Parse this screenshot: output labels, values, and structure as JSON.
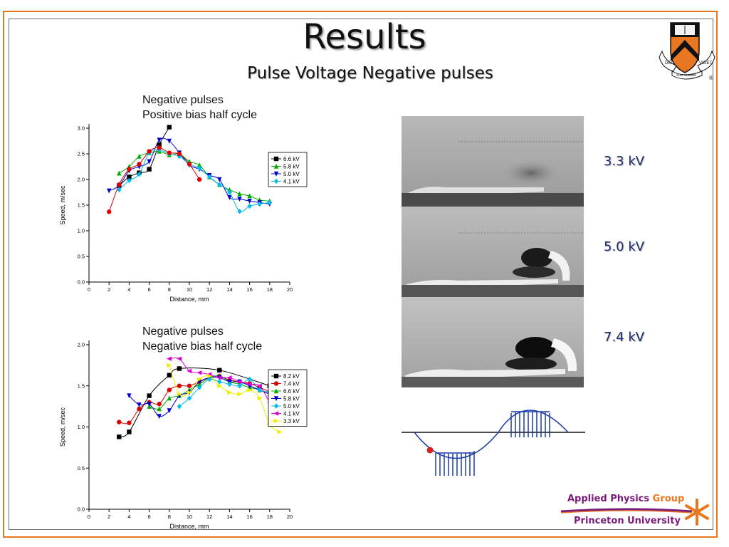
{
  "slide": {
    "title": "Results",
    "subtitle": "Pulse Voltage Negative pulses",
    "voltage_labels": [
      "3.3 kV",
      "5.0 kV",
      "7.4 kV"
    ],
    "footer": {
      "line1_part_a": "Applied Physics",
      "line1_part_b": "Group",
      "line2": "Princeton University"
    },
    "logo_motto_left": "DEI",
    "logo_motto_center": "SUB NUMINE",
    "logo_motto_right": "VIGET",
    "registered_mark": "®",
    "colors": {
      "frame": "#e87722",
      "text_blue": "#1d2d6b",
      "waveform": "#1a3aa8",
      "marker": "#d42020"
    }
  },
  "chart_data": [
    {
      "type": "line",
      "title": "Negative pulses",
      "subtitle": "Positive bias half cycle",
      "xlabel": "Distance, mm",
      "ylabel": "Speed, m/sec",
      "xlim": [
        0,
        20
      ],
      "ylim": [
        0.0,
        3.0
      ],
      "xticks": [
        "0",
        "2",
        "4",
        "6",
        "8",
        "10",
        "12",
        "14",
        "16",
        "18",
        "20"
      ],
      "yticks": [
        "0.0",
        "0.5",
        "1.0",
        "1.5",
        "2.0",
        "2.5",
        "3.0"
      ],
      "legend_position": "right",
      "grid": false,
      "series": [
        {
          "name": "6.6 kV",
          "color": "#000000",
          "marker": "square",
          "x": [
            3,
            4,
            5,
            6,
            7,
            8
          ],
          "y": [
            1.88,
            2.05,
            2.13,
            2.2,
            2.68,
            3.02
          ]
        },
        {
          "name": "5.8 kV",
          "color": "#00aa00",
          "marker": "triangle-up",
          "x": [
            3,
            4,
            5,
            6,
            7,
            8,
            9,
            10,
            11,
            12,
            13,
            14,
            15,
            16,
            17,
            18
          ],
          "y": [
            2.12,
            2.25,
            2.45,
            2.52,
            2.55,
            2.48,
            2.5,
            2.35,
            2.28,
            2.05,
            1.9,
            1.8,
            1.72,
            1.68,
            1.6,
            1.58
          ]
        },
        {
          "name": "5.0 kV",
          "color": "#0000cc",
          "marker": "triangle-down",
          "x": [
            2,
            3,
            4,
            5,
            6,
            7,
            8,
            9,
            10,
            11,
            12,
            13,
            14,
            15,
            16,
            17,
            18
          ],
          "y": [
            1.78,
            1.88,
            2.17,
            2.25,
            2.35,
            2.77,
            2.75,
            2.52,
            2.28,
            2.2,
            2.08,
            2.0,
            1.65,
            1.62,
            1.58,
            1.55,
            1.52
          ]
        },
        {
          "name": "4.1 kV",
          "color": "#00bbee",
          "marker": "diamond",
          "x": [
            3,
            4,
            5,
            6,
            7,
            8,
            9,
            10,
            11,
            12,
            13,
            14,
            15,
            16,
            17,
            18
          ],
          "y": [
            1.8,
            1.98,
            2.1,
            2.52,
            2.58,
            2.5,
            2.45,
            2.3,
            2.22,
            2.05,
            1.9,
            1.75,
            1.38,
            1.48,
            1.52,
            1.55
          ]
        },
        {
          "name": "",
          "color": "#dd0000",
          "marker": "circle",
          "x": [
            2,
            3,
            4,
            5,
            6,
            7,
            8,
            9,
            10,
            11
          ],
          "y": [
            1.37,
            1.9,
            2.2,
            2.3,
            2.55,
            2.62,
            2.52,
            2.5,
            2.3,
            2.0
          ],
          "hidden_legend": true
        }
      ]
    },
    {
      "type": "line",
      "title": "Negative pulses",
      "subtitle": "Negative bias half cycle",
      "xlabel": "Distance, mm",
      "ylabel": "Speed, m/sec",
      "xlim": [
        0,
        20
      ],
      "ylim": [
        0.0,
        2.0
      ],
      "xticks": [
        "0",
        "2",
        "4",
        "6",
        "8",
        "10",
        "12",
        "14",
        "16",
        "18",
        "20"
      ],
      "yticks": [
        "0.0",
        "0.5",
        "1.0",
        "1.5",
        "2.0"
      ],
      "legend_position": "right",
      "grid": false,
      "series": [
        {
          "name": "8.2 kV",
          "color": "#000000",
          "marker": "square",
          "x": [
            3,
            4,
            6,
            8,
            9,
            13,
            18
          ],
          "y": [
            0.88,
            0.94,
            1.38,
            1.63,
            1.71,
            1.69,
            1.5
          ]
        },
        {
          "name": "7.4 kV",
          "color": "#dd0000",
          "marker": "circle",
          "x": [
            3,
            4,
            5,
            6,
            7,
            8,
            9,
            10,
            11,
            12,
            13,
            14,
            15,
            16,
            17,
            18
          ],
          "y": [
            1.06,
            1.05,
            1.22,
            1.3,
            1.28,
            1.45,
            1.5,
            1.5,
            1.55,
            1.6,
            1.62,
            1.57,
            1.55,
            1.53,
            1.48,
            1.43
          ]
        },
        {
          "name": "6.6 kV",
          "color": "#00aa00",
          "marker": "triangle-up",
          "x": [
            6,
            7,
            8,
            9,
            10,
            11,
            12,
            13,
            14,
            15,
            16,
            17,
            18
          ],
          "y": [
            1.25,
            1.22,
            1.35,
            1.38,
            1.45,
            1.52,
            1.6,
            1.62,
            1.55,
            1.52,
            1.48,
            1.45,
            1.4
          ]
        },
        {
          "name": "5.8 kV",
          "color": "#0000cc",
          "marker": "triangle-down",
          "x": [
            4,
            5,
            6,
            7,
            8,
            9,
            10,
            11,
            12,
            13,
            14,
            15,
            16,
            17,
            18,
            19
          ],
          "y": [
            1.38,
            1.27,
            1.28,
            1.13,
            1.2,
            1.38,
            1.42,
            1.55,
            1.6,
            1.6,
            1.55,
            1.55,
            1.5,
            1.45,
            1.4,
            1.38
          ]
        },
        {
          "name": "5.0 kV",
          "color": "#00bbee",
          "marker": "diamond",
          "x": [
            9,
            10,
            11,
            12,
            13,
            14,
            15,
            16,
            17,
            18
          ],
          "y": [
            1.25,
            1.35,
            1.48,
            1.58,
            1.55,
            1.52,
            1.5,
            1.58,
            1.45,
            1.43
          ]
        },
        {
          "name": "4.1 kV",
          "color": "#dd00dd",
          "marker": "triangle-left",
          "x": [
            8,
            9,
            10,
            11,
            12,
            13,
            14,
            15,
            16,
            17,
            18,
            19
          ],
          "y": [
            1.83,
            1.83,
            1.68,
            1.66,
            1.64,
            1.6,
            1.6,
            1.55,
            1.52,
            1.5,
            1.3,
            1.12
          ]
        },
        {
          "name": "3.3 kV",
          "color": "#eeee00",
          "marker": "triangle-right",
          "x": [
            8,
            9,
            10,
            11,
            12,
            13,
            14,
            15,
            16,
            17,
            18,
            19
          ],
          "y": [
            1.75,
            1.4,
            1.42,
            1.58,
            1.62,
            1.5,
            1.42,
            1.4,
            1.45,
            1.35,
            1.03,
            0.94
          ]
        }
      ]
    }
  ]
}
